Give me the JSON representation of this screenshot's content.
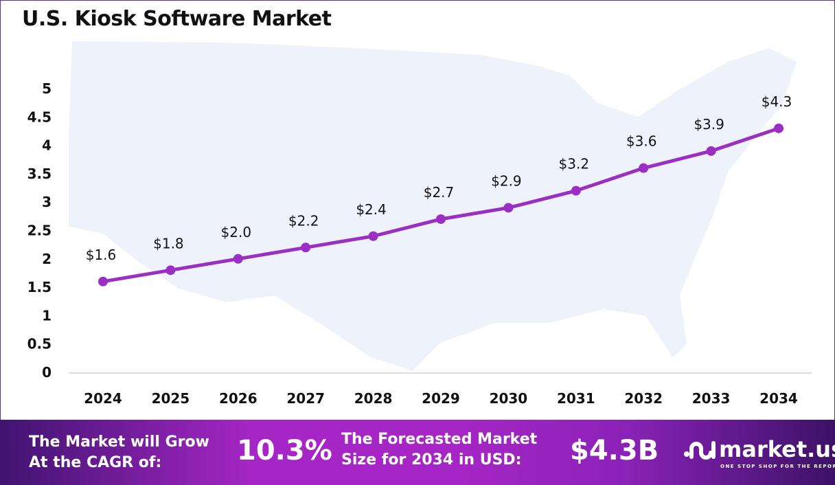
{
  "chart_data": {
    "type": "line",
    "title": "U.S. Kiosk Software Market",
    "categories": [
      "2024",
      "2025",
      "2026",
      "2027",
      "2028",
      "2029",
      "2030",
      "2031",
      "2032",
      "2033",
      "2034"
    ],
    "values": [
      1.6,
      1.8,
      2.0,
      2.2,
      2.4,
      2.7,
      2.9,
      3.2,
      3.6,
      3.9,
      4.3
    ],
    "data_labels": [
      "$1.6",
      "$1.8",
      "$2.0",
      "$2.2",
      "$2.4",
      "$2.7",
      "$2.9",
      "$3.2",
      "$3.6",
      "$3.9",
      "$4.3"
    ],
    "yticks": [
      "0",
      "0.5",
      "1",
      "1.5",
      "2",
      "2.5",
      "3",
      "3.5",
      "4",
      "4.5",
      "5"
    ],
    "ylim": [
      0,
      5
    ],
    "xlabel": "",
    "ylabel": "",
    "grid": false,
    "line_color": "#9b2fc4",
    "background": "U.S. map silhouette"
  },
  "footer": {
    "cagr_label_1": "The Market will Grow",
    "cagr_label_2": "At the CAGR of:",
    "cagr_value": "10.3%",
    "size_label_1": "The Forecasted Market",
    "size_label_2": "Size for 2034 in USD:",
    "size_value": "$4.3B",
    "logo_name": "market.us",
    "logo_tagline": "ONE STOP SHOP FOR THE REPORTS"
  }
}
